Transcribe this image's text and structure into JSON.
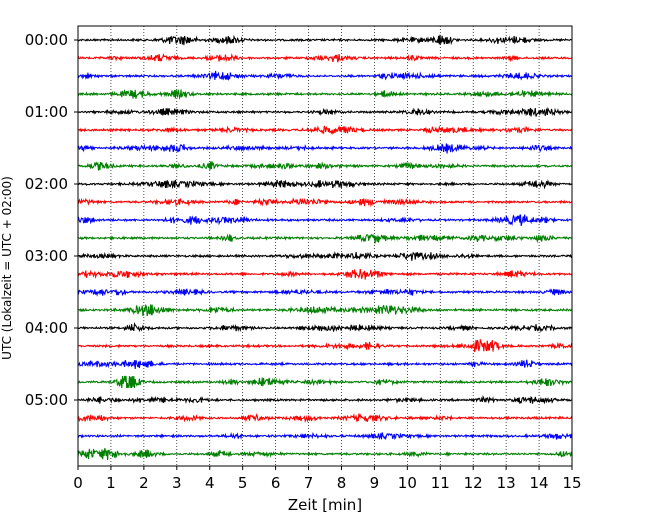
{
  "chart_data": {
    "type": "line",
    "title": "",
    "xlabel": "Zeit  [min]",
    "ylabel": "UTC (Lokalzeit = UTC + 02:00)",
    "xlim": [
      0,
      15
    ],
    "xticks": [
      0,
      1,
      2,
      3,
      4,
      5,
      6,
      7,
      8,
      9,
      10,
      11,
      12,
      13,
      14,
      15
    ],
    "ylabel_ticks": [
      "00:00",
      "01:00",
      "02:00",
      "03:00",
      "04:00",
      "05:00"
    ],
    "trace_interval_minutes": 15,
    "trace_count": 24,
    "start_time": "00:00",
    "grid_x": true,
    "grid_style": "dotted",
    "trace_colors": [
      "#000000",
      "#ff0000",
      "#0000ff",
      "#008000"
    ]
  }
}
